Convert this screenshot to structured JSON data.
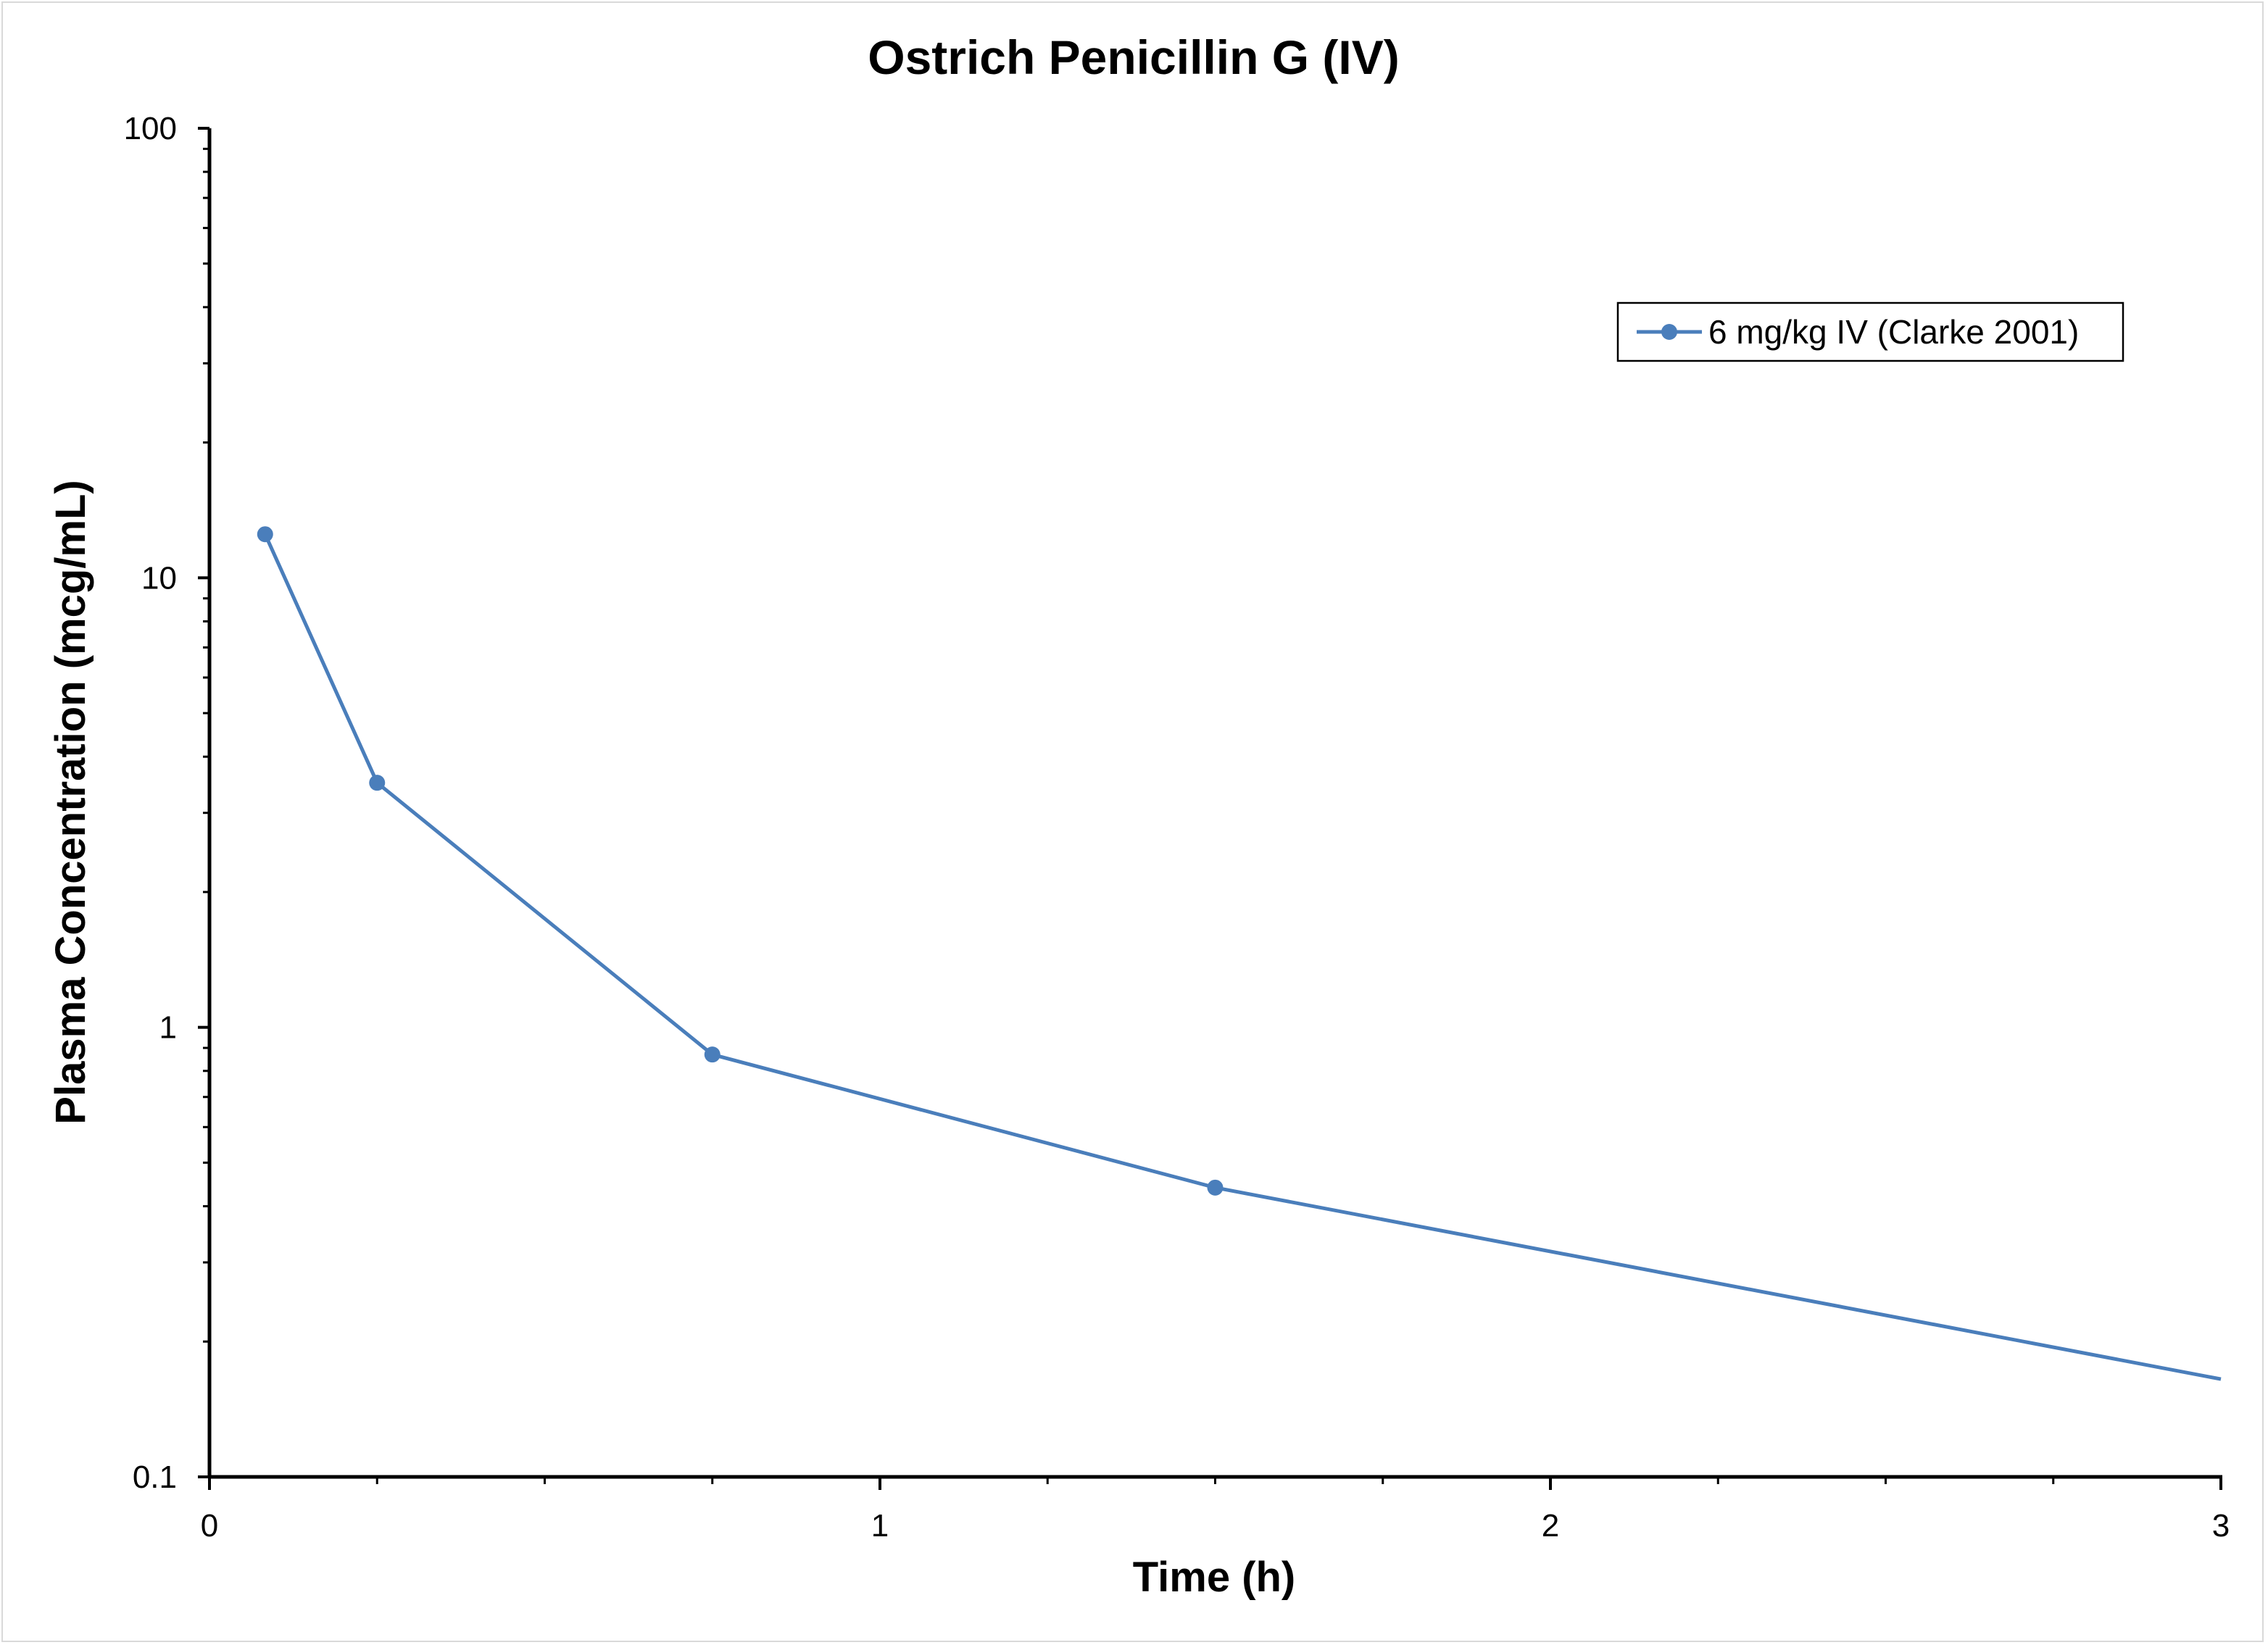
{
  "chart_data": {
    "type": "line",
    "title": "Ostrich Penicillin G (IV)",
    "xlabel": "Time (h)",
    "ylabel": "Plasma Concentration (mcg/mL)",
    "xlim": [
      0,
      3
    ],
    "ylim": [
      0.1,
      100
    ],
    "yscale": "log",
    "x_ticks": [
      "0",
      "1",
      "2",
      "3"
    ],
    "y_ticks": [
      "0.1",
      "1",
      "10",
      "100"
    ],
    "grid": false,
    "legend_position": "top-right",
    "series": [
      {
        "name": "6 mg/kg IV (Clarke 2001)",
        "color": "#4a7ebb",
        "x": [
          0.083,
          0.25,
          0.75,
          1.5,
          3
        ],
        "y": [
          12.5,
          3.5,
          0.87,
          0.44,
          0.165
        ],
        "markers": [
          true,
          true,
          true,
          true,
          false
        ]
      }
    ]
  }
}
